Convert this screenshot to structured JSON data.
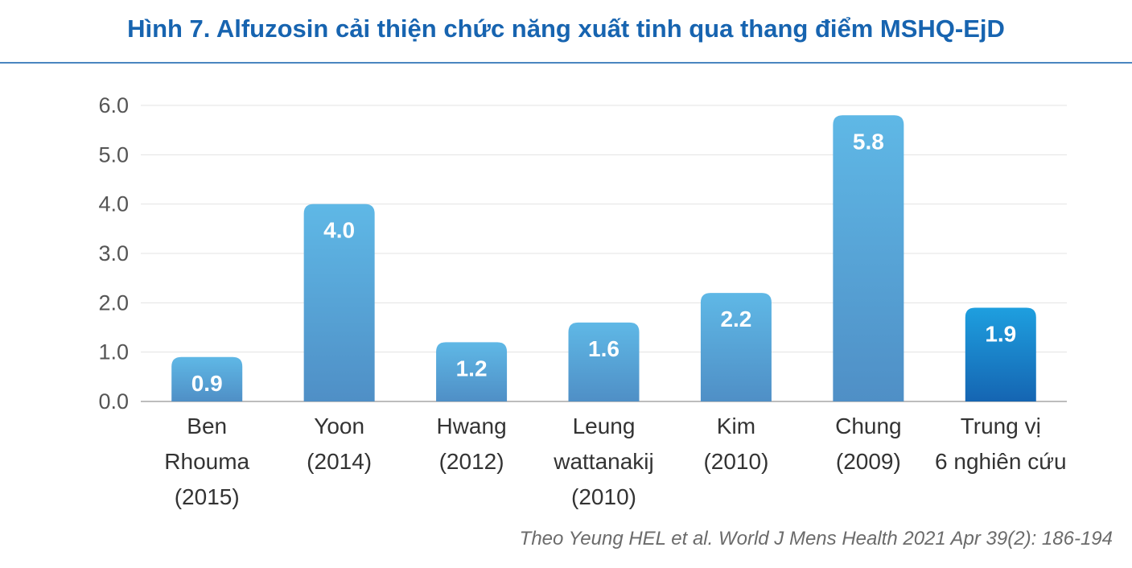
{
  "chart_data": {
    "type": "bar",
    "title": "Hình 7. Alfuzosin cải thiện chức năng xuất tinh qua thang điểm MSHQ-EjD",
    "categories": [
      [
        "Ben",
        "Rhouma",
        "(2015)"
      ],
      [
        "Yoon",
        "(2014)"
      ],
      [
        "Hwang",
        "(2012)"
      ],
      [
        "Leung",
        "wattanakij",
        "(2010)"
      ],
      [
        "Kim",
        "(2010)"
      ],
      [
        "Chung",
        "(2009)"
      ],
      [
        "Trung vị",
        "6 nghiên cứu"
      ]
    ],
    "values": [
      0.9,
      4.0,
      1.2,
      1.6,
      2.2,
      5.8,
      1.9
    ],
    "data_labels": [
      "0.9",
      "4.0",
      "1.2",
      "1.6",
      "2.2",
      "5.8",
      "1.9"
    ],
    "yticks": [
      "0.0",
      "1.0",
      "2.0",
      "3.0",
      "4.0",
      "5.0",
      "6.0"
    ],
    "ylim": [
      0,
      6
    ],
    "grid": true,
    "highlight_index": 6,
    "colors": {
      "bar_top": "#5fb8e6",
      "bar_bottom": "#4f8fc6",
      "highlight_top": "#1e9fdf",
      "highlight_bottom": "#1565b2",
      "title": "#1764b0"
    },
    "source": "Theo Yeung HEL et al. World J Mens Health 2021 Apr 39(2): 186-194"
  }
}
